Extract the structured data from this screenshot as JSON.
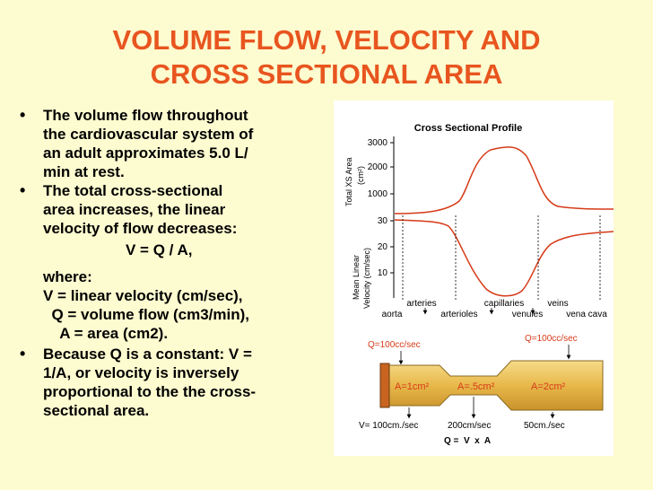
{
  "slide": {
    "title_line1": "VOLUME FLOW, VELOCITY AND",
    "title_line2": "CROSS SECTIONAL AREA"
  },
  "bullets": {
    "b1_lines": [
      "The volume flow throughout",
      "the cardiovascular system of",
      "an adult approximates 5.0 L/",
      "min at rest."
    ],
    "b2_lines": [
      "The total cross-sectional",
      "area increases, the linear",
      "velocity of flow decreases:"
    ],
    "equation": "V = Q / A,",
    "where_lines": [
      "where:",
      "V = linear velocity (cm/sec),",
      "  Q = volume flow (cm3/min),",
      "    A = area (cm2)."
    ],
    "b3_lines": [
      "Because Q is a constant: V =",
      "1/A, or velocity is inversely",
      "proportional to the the cross-",
      "sectional area."
    ],
    "marker": "•"
  },
  "figure": {
    "profile_title": "Cross Sectional Profile",
    "top_ylabel_line1": "Total XS Area",
    "top_ylabel_line2": "(cm²)",
    "top_ticks": [
      "3000",
      "2000",
      "1000"
    ],
    "bottom_ylabel_line1": "Mean Linear",
    "bottom_ylabel_line2": "Velocity (cm/sec)",
    "bottom_ticks": [
      "30",
      "20",
      "10"
    ],
    "vessels_top": [
      "arteries",
      "capillaries",
      "veins"
    ],
    "vessels_bottom": [
      "aorta",
      "arterioles",
      "venules",
      "vena cava"
    ],
    "pipe": {
      "q_left": "Q=100cc/sec",
      "q_right": "Q=100cc/sec",
      "a1": "A=1cm²",
      "a2": "A=.5cm²",
      "a3": "A=2cm²",
      "v1": "V= 100cm./sec",
      "v2": "200cm/sec",
      "v3": "50cm./sec",
      "formula": "Q =  V  x  A"
    },
    "colors": {
      "curve": "#d63a18",
      "pipe": "#e8b84a",
      "piston": "#c86420"
    }
  }
}
